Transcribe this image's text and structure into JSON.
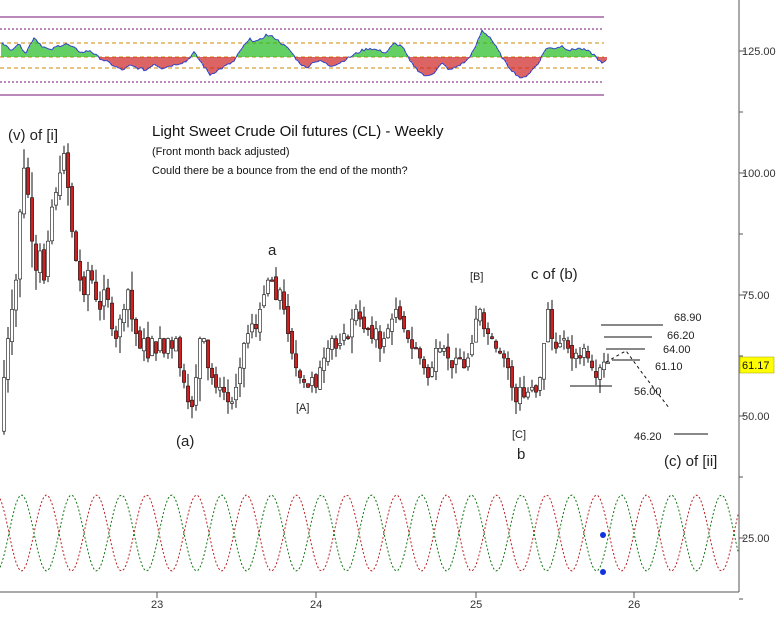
{
  "chart_data": {
    "type": "candlestick",
    "title": "Light Sweet Crude Oil futures (CL) - Weekly",
    "subtitle": "(Front month back adjusted)",
    "note": "Could there be a bounce from the end of the month?",
    "x_ticks": [
      "23",
      "24",
      "25",
      "26"
    ],
    "y_ticks": [
      "125.00",
      "100.00",
      "75.00",
      "50.00",
      "25.00"
    ],
    "last_price": "61.17",
    "colors": {
      "up_candle": "#ffffff",
      "down_candle": "#cc2222",
      "candle_outline": "#111111",
      "last_price_bg": "#ffff00",
      "osc_positive": "#22bb22",
      "osc_negative": "#cc2222",
      "osc_line": "#3344cc",
      "osc_band": "#771177",
      "osc_level": "#cc8800",
      "cycle_red": "#bb2222",
      "cycle_green": "#117711",
      "projection": "#111111",
      "cycle_marker": "#1133dd"
    },
    "price_path": [
      [
        0,
        47
      ],
      [
        4,
        58
      ],
      [
        8,
        66
      ],
      [
        12,
        72
      ],
      [
        16,
        78
      ],
      [
        20,
        92
      ],
      [
        24,
        101
      ],
      [
        27,
        98
      ],
      [
        32,
        86
      ],
      [
        36,
        80
      ],
      [
        40,
        84
      ],
      [
        44,
        78
      ],
      [
        48,
        86
      ],
      [
        52,
        93
      ],
      [
        56,
        96
      ],
      [
        60,
        100
      ],
      [
        64,
        104
      ],
      [
        68,
        97
      ],
      [
        72,
        88
      ],
      [
        76,
        82
      ],
      [
        80,
        78
      ],
      [
        84,
        75
      ],
      [
        88,
        80
      ],
      [
        92,
        78
      ],
      [
        96,
        74
      ],
      [
        100,
        72
      ],
      [
        104,
        76
      ],
      [
        108,
        74
      ],
      [
        112,
        68
      ],
      [
        116,
        66
      ],
      [
        120,
        70
      ],
      [
        124,
        72
      ],
      [
        128,
        76
      ],
      [
        132,
        70
      ],
      [
        136,
        67
      ],
      [
        140,
        64
      ],
      [
        144,
        66
      ],
      [
        148,
        62
      ],
      [
        152,
        66
      ],
      [
        156,
        63
      ],
      [
        160,
        66
      ],
      [
        164,
        63
      ],
      [
        168,
        66
      ],
      [
        172,
        64
      ],
      [
        176,
        66
      ],
      [
        180,
        60
      ],
      [
        184,
        57
      ],
      [
        188,
        53
      ],
      [
        192,
        52
      ],
      [
        196,
        58
      ],
      [
        200,
        66
      ],
      [
        204,
        66
      ],
      [
        208,
        60
      ],
      [
        212,
        58
      ],
      [
        216,
        56
      ],
      [
        220,
        56
      ],
      [
        224,
        55
      ],
      [
        228,
        53
      ],
      [
        232,
        53
      ],
      [
        236,
        56
      ],
      [
        240,
        60
      ],
      [
        244,
        65
      ],
      [
        248,
        67
      ],
      [
        252,
        69
      ],
      [
        256,
        68
      ],
      [
        260,
        72
      ],
      [
        264,
        75
      ],
      [
        268,
        78
      ],
      [
        272,
        78
      ],
      [
        276,
        74
      ],
      [
        280,
        76
      ],
      [
        284,
        72
      ],
      [
        288,
        67
      ],
      [
        292,
        63
      ],
      [
        296,
        60
      ],
      [
        300,
        58
      ],
      [
        304,
        57
      ],
      [
        308,
        56
      ],
      [
        312,
        58
      ],
      [
        316,
        56
      ],
      [
        320,
        60
      ],
      [
        324,
        62
      ],
      [
        328,
        64
      ],
      [
        332,
        66
      ],
      [
        336,
        64
      ],
      [
        340,
        65
      ],
      [
        344,
        67
      ],
      [
        348,
        66
      ],
      [
        352,
        70
      ],
      [
        356,
        72
      ],
      [
        360,
        70
      ],
      [
        364,
        68
      ],
      [
        368,
        68
      ],
      [
        372,
        66
      ],
      [
        376,
        68
      ],
      [
        380,
        64
      ],
      [
        384,
        66
      ],
      [
        388,
        68
      ],
      [
        392,
        70
      ],
      [
        396,
        72
      ],
      [
        400,
        70
      ],
      [
        404,
        68
      ],
      [
        408,
        66
      ],
      [
        412,
        64
      ],
      [
        416,
        64
      ],
      [
        420,
        62
      ],
      [
        424,
        60
      ],
      [
        428,
        58
      ],
      [
        432,
        60
      ],
      [
        436,
        64
      ],
      [
        440,
        64
      ],
      [
        444,
        64
      ],
      [
        448,
        62
      ],
      [
        452,
        60
      ],
      [
        456,
        62
      ],
      [
        460,
        62
      ],
      [
        464,
        60
      ],
      [
        468,
        62
      ],
      [
        472,
        65
      ],
      [
        476,
        70
      ],
      [
        480,
        72
      ],
      [
        484,
        68
      ],
      [
        488,
        67
      ],
      [
        492,
        66
      ],
      [
        496,
        64
      ],
      [
        500,
        63
      ],
      [
        504,
        62
      ],
      [
        508,
        60
      ],
      [
        512,
        56
      ],
      [
        516,
        53
      ],
      [
        520,
        56
      ],
      [
        524,
        54
      ],
      [
        528,
        55
      ],
      [
        532,
        56
      ],
      [
        536,
        55
      ],
      [
        540,
        58
      ],
      [
        544,
        65
      ],
      [
        548,
        72
      ],
      [
        552,
        66
      ],
      [
        556,
        64
      ],
      [
        560,
        65
      ],
      [
        564,
        66
      ],
      [
        568,
        64
      ],
      [
        572,
        62
      ],
      [
        576,
        63
      ],
      [
        580,
        62
      ],
      [
        584,
        64
      ],
      [
        588,
        62
      ],
      [
        592,
        60
      ],
      [
        596,
        58
      ],
      [
        600,
        60
      ],
      [
        604,
        61.17
      ]
    ],
    "oscillator_path": [
      [
        0,
        0.7
      ],
      [
        8,
        0.3
      ],
      [
        16,
        0.6
      ],
      [
        24,
        0.2
      ],
      [
        32,
        0.9
      ],
      [
        40,
        0.5
      ],
      [
        48,
        0.3
      ],
      [
        56,
        0.5
      ],
      [
        64,
        0.6
      ],
      [
        72,
        0.4
      ],
      [
        80,
        0.2
      ],
      [
        88,
        0.3
      ],
      [
        96,
        0.0
      ],
      [
        104,
        -0.2
      ],
      [
        112,
        -0.4
      ],
      [
        120,
        -0.6
      ],
      [
        128,
        -0.4
      ],
      [
        136,
        -0.5
      ],
      [
        144,
        -0.6
      ],
      [
        152,
        -0.3
      ],
      [
        160,
        -0.5
      ],
      [
        168,
        -0.4
      ],
      [
        176,
        -0.3
      ],
      [
        184,
        -0.2
      ],
      [
        192,
        0.2
      ],
      [
        200,
        -0.3
      ],
      [
        208,
        -0.8
      ],
      [
        216,
        -0.6
      ],
      [
        224,
        -0.4
      ],
      [
        232,
        -0.2
      ],
      [
        240,
        0.4
      ],
      [
        248,
        0.8
      ],
      [
        256,
        0.7
      ],
      [
        264,
        1.0
      ],
      [
        272,
        0.9
      ],
      [
        280,
        0.6
      ],
      [
        288,
        0.3
      ],
      [
        296,
        -0.2
      ],
      [
        304,
        -0.5
      ],
      [
        312,
        -0.2
      ],
      [
        320,
        -0.2
      ],
      [
        328,
        -0.4
      ],
      [
        336,
        -0.3
      ],
      [
        344,
        -0.1
      ],
      [
        352,
        0.1
      ],
      [
        360,
        0.3
      ],
      [
        368,
        0.4
      ],
      [
        376,
        0.3
      ],
      [
        384,
        0.2
      ],
      [
        392,
        0.6
      ],
      [
        400,
        0.5
      ],
      [
        408,
        -0.2
      ],
      [
        416,
        -0.6
      ],
      [
        424,
        -0.9
      ],
      [
        432,
        -0.7
      ],
      [
        440,
        -0.3
      ],
      [
        448,
        -0.6
      ],
      [
        456,
        -0.4
      ],
      [
        464,
        -0.2
      ],
      [
        472,
        0.3
      ],
      [
        480,
        1.2
      ],
      [
        488,
        0.9
      ],
      [
        496,
        0.3
      ],
      [
        504,
        -0.3
      ],
      [
        512,
        -0.7
      ],
      [
        520,
        -1.0
      ],
      [
        528,
        -0.7
      ],
      [
        536,
        -0.3
      ],
      [
        544,
        0.4
      ],
      [
        552,
        0.4
      ],
      [
        560,
        0.5
      ],
      [
        568,
        0.3
      ],
      [
        576,
        0.4
      ],
      [
        584,
        0.3
      ],
      [
        592,
        0.1
      ],
      [
        600,
        -0.3
      ],
      [
        604,
        -0.2
      ]
    ],
    "cycle_markers": [
      {
        "pos": 604,
        "val": 0.8
      },
      {
        "pos": 604,
        "val": -0.9
      }
    ],
    "levels": [
      {
        "label": "68.90",
        "price": 68.9
      },
      {
        "label": "66.20",
        "price": 66.2
      },
      {
        "label": "64.00",
        "price": 64.0
      },
      {
        "label": "61.10",
        "price": 61.1
      },
      {
        "label": "56.00",
        "price": 56.0
      },
      {
        "label": "46.20",
        "price": 46.2
      }
    ],
    "wave_labels": [
      {
        "text": "(v) of [i]",
        "pos": 8,
        "price": 106
      },
      {
        "text": "Light Sweet Crude Oil futures (CL) - Weekly",
        "pos": 152,
        "price": 106
      },
      {
        "text": "a",
        "pos": 268,
        "price": 84
      },
      {
        "text": "(a)",
        "pos": 176,
        "price": 44
      },
      {
        "text": "[A]",
        "pos": 296,
        "price": 51
      },
      {
        "text": "[B]",
        "pos": 470,
        "price": 78
      },
      {
        "text": "c of (b)",
        "pos": 531,
        "price": 78
      },
      {
        "text": "[C]",
        "pos": 512,
        "price": 46
      },
      {
        "text": "b",
        "pos": 517,
        "price": 42
      },
      {
        "text": "(c) of [ii]",
        "pos": 664,
        "price": 40
      }
    ],
    "projection": [
      [
        604,
        61.17
      ],
      [
        624,
        63.5
      ],
      [
        640,
        59
      ],
      [
        668,
        51.5
      ]
    ]
  }
}
